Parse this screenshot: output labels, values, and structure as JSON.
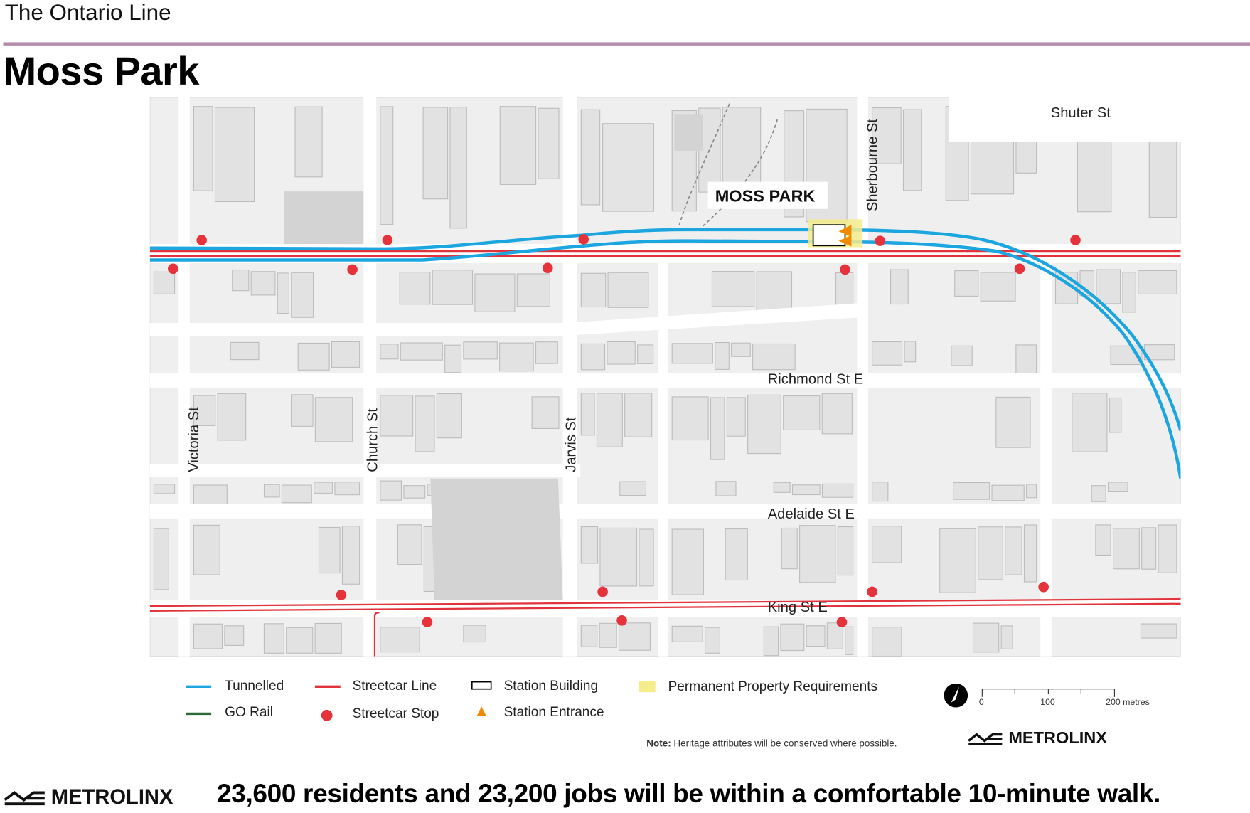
{
  "header": {
    "kicker": "The Ontario Line",
    "title": "Moss Park"
  },
  "map": {
    "station_label": "MOSS PARK",
    "streets": {
      "shuter": "Shuter St",
      "sherbourne": "Sherbourne St",
      "richmond": "Richmond St E",
      "adelaide": "Adelaide St E",
      "king": "King St E",
      "victoria": "Victoria St",
      "church": "Church St",
      "jarvis": "Jarvis St"
    },
    "colors": {
      "tunnelled": "#1ba6e0",
      "streetcar": "#e0333c",
      "go_rail": "#2e6b3a",
      "property": "#f5ec8c",
      "entrance": "#f08a00"
    }
  },
  "legend": {
    "tunnelled": "Tunnelled",
    "go_rail": "GO Rail",
    "streetcar_line": "Streetcar Line",
    "streetcar_stop": "Streetcar Stop",
    "station_building": "Station Building",
    "station_entrance": "Station Entrance",
    "property": "Permanent Property Requirements"
  },
  "scale": {
    "t0": "0",
    "t1": "100",
    "t2": "200 metres"
  },
  "note": {
    "label": "Note:",
    "text": "Heritage attributes will be conserved where possible."
  },
  "brand": "METROLINX",
  "tagline": "23,600 residents and 23,200 jobs will be within a comfortable 10-minute walk."
}
